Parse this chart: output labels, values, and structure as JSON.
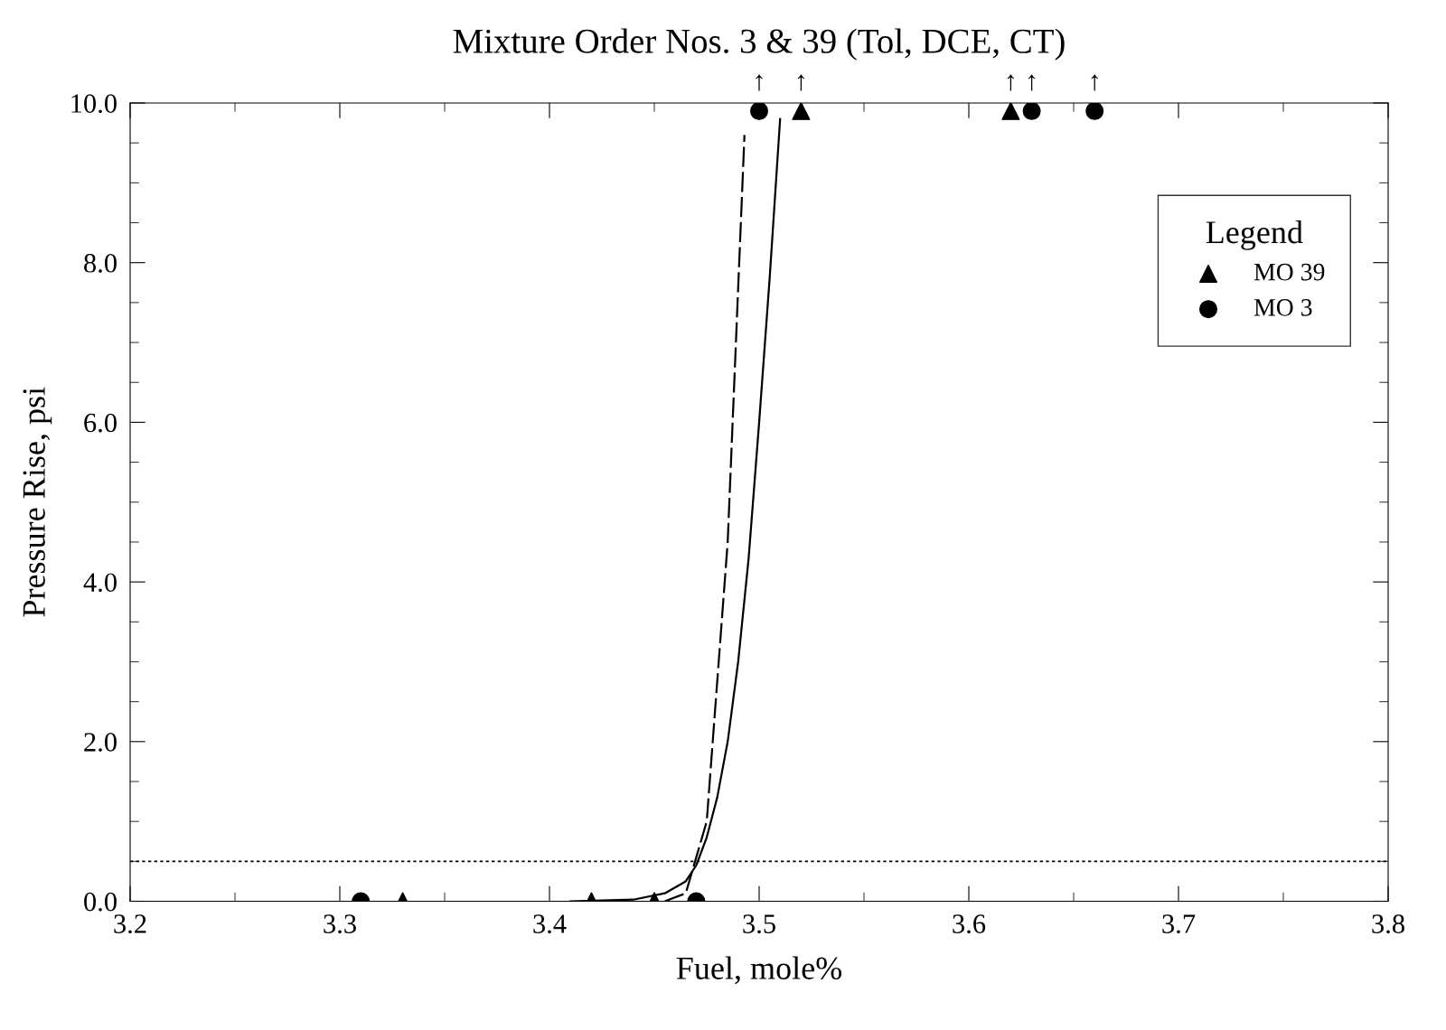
{
  "chart_data": {
    "type": "scatter",
    "title": "Mixture Order Nos. 3 & 39 (Tol, DCE, CT)",
    "xlabel": "Fuel, mole%",
    "ylabel": "Pressure Rise, psi",
    "legend_title": "Legend",
    "legend": "top right",
    "grid": false,
    "xlim": [
      3.2,
      3.8
    ],
    "xticks": [
      3.2,
      3.3,
      3.4,
      3.5,
      3.6,
      3.7,
      3.8
    ],
    "ylim": [
      0,
      10
    ],
    "yticks": [
      {
        "value": 0,
        "label": "0.0"
      },
      {
        "value": 2,
        "label": "2.0"
      },
      {
        "value": 4,
        "label": "4.0"
      },
      {
        "value": 6,
        "label": "6.0"
      },
      {
        "value": 8,
        "label": "8.0"
      },
      {
        "value": 10,
        "label": "10.0"
      }
    ],
    "series": [
      {
        "name": "MO 39",
        "marker": "triangle",
        "color": "#000000",
        "x": [
          3.33,
          3.42,
          3.45,
          3.52,
          3.62
        ],
        "values": [
          0,
          0,
          0,
          9.9,
          9.9
        ]
      },
      {
        "name": "MO 3",
        "marker": "circle",
        "color": "#000000",
        "x": [
          3.31,
          3.47,
          3.5,
          3.63,
          3.66
        ],
        "values": [
          0,
          0,
          9.9,
          9.9,
          9.9
        ]
      },
      {
        "type": "line",
        "line_style": "solid",
        "marker": "none",
        "color": "#000000",
        "x": [
          3.41,
          3.44,
          3.455,
          3.465,
          3.47,
          3.475,
          3.48,
          3.485,
          3.49,
          3.495,
          3.5,
          3.505,
          3.51
        ],
        "values": [
          0,
          0.02,
          0.1,
          0.25,
          0.45,
          0.8,
          1.3,
          2.0,
          3.0,
          4.3,
          6.0,
          7.8,
          9.8
        ]
      },
      {
        "type": "line",
        "line_style": "dashed",
        "marker": "none",
        "color": "#000000",
        "x": [
          3.455,
          3.465,
          3.475,
          3.485,
          3.493
        ],
        "values": [
          0,
          0.1,
          1.0,
          4.5,
          9.6
        ]
      }
    ],
    "ref_lines": [
      {
        "axis": "y",
        "value": 0.5,
        "label": null,
        "color": "#000000",
        "line_style": "dotted"
      }
    ],
    "annotations": [
      {
        "text": "↑",
        "x": 3.5,
        "y": 9.9
      },
      {
        "text": "↑",
        "x": 3.52,
        "y": 9.9
      },
      {
        "text": "↑",
        "x": 3.62,
        "y": 9.9
      },
      {
        "text": "↑",
        "x": 3.63,
        "y": 9.9
      },
      {
        "text": "↑",
        "x": 3.66,
        "y": 9.9
      }
    ]
  }
}
